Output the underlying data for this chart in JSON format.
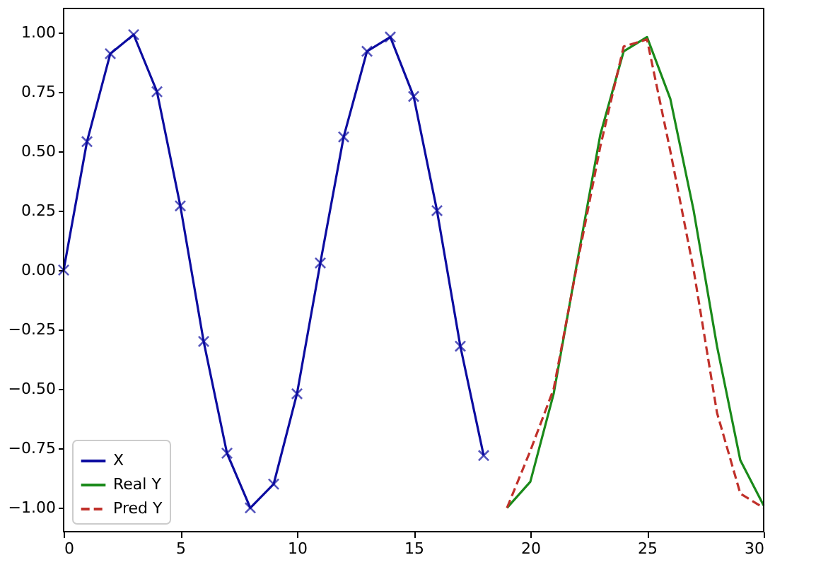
{
  "chart_data": {
    "type": "line",
    "xlim": [
      0,
      30
    ],
    "xticks": [
      0,
      5,
      10,
      15,
      20,
      25,
      30
    ],
    "ylim": [
      -1.1,
      1.1
    ],
    "yticks": [
      {
        "value": -1,
        "label": "−1.00"
      },
      {
        "value": -0.75,
        "label": "−0.75"
      },
      {
        "value": -0.5,
        "label": "−0.50"
      },
      {
        "value": -0.25,
        "label": "−0.25"
      },
      {
        "value": 0,
        "label": "0.00"
      },
      {
        "value": 0.25,
        "label": "0.25"
      },
      {
        "value": 0.5,
        "label": "0.50"
      },
      {
        "value": 0.75,
        "label": "0.75"
      },
      {
        "value": 1,
        "label": "1.00"
      }
    ],
    "legend": "bottom left",
    "grid": false,
    "series": [
      {
        "name": "X",
        "color": "#0c0ca0",
        "marker": "cross",
        "line_style": "solid",
        "x": [
          0,
          1,
          2,
          3,
          4,
          5,
          6,
          7,
          8,
          9,
          10,
          11,
          12,
          13,
          14,
          15,
          16,
          17,
          18
        ],
        "values": [
          0,
          0.54,
          0.91,
          0.99,
          0.75,
          0.27,
          -0.3,
          -0.77,
          -1.0,
          -0.9,
          -0.52,
          0.03,
          0.56,
          0.92,
          0.98,
          0.73,
          0.25,
          -0.32,
          -0.78
        ]
      },
      {
        "name": "Real Y",
        "color": "#1a8a1a",
        "marker": "none",
        "line_style": "solid",
        "x": [
          19,
          20,
          21,
          22,
          23,
          24,
          25,
          26,
          27,
          28,
          29,
          30
        ],
        "values": [
          -1.0,
          -0.89,
          -0.52,
          0.03,
          0.57,
          0.92,
          0.98,
          0.72,
          0.25,
          -0.32,
          -0.8,
          -0.99
        ]
      },
      {
        "name": "Pred Y",
        "color": "#c0302a",
        "marker": "none",
        "line_style": "dashed",
        "x": [
          19,
          20,
          21,
          22,
          23,
          24,
          25,
          26,
          27,
          28,
          29,
          30
        ],
        "values": [
          -1.0,
          -0.76,
          -0.5,
          0.02,
          0.52,
          0.94,
          0.97,
          0.5,
          0.0,
          -0.6,
          -0.94,
          -1.0
        ]
      }
    ]
  }
}
